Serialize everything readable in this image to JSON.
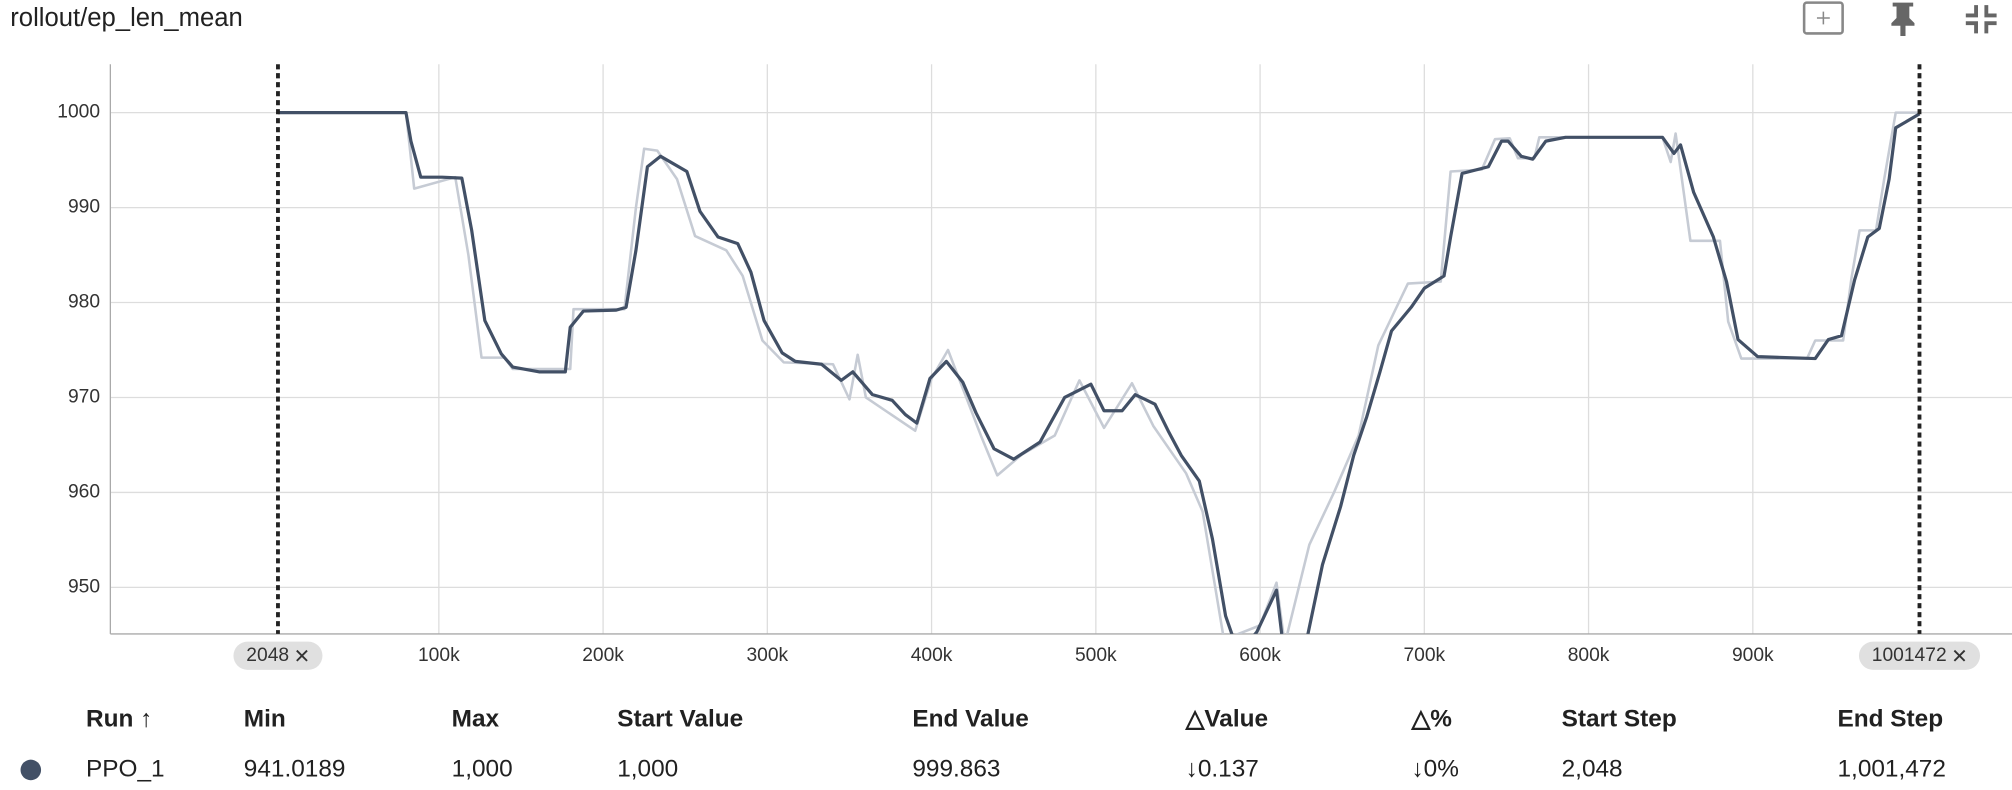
{
  "title": "rollout/ep_len_mean",
  "chart_data": {
    "type": "line",
    "xlim": [
      -100000,
      1057800
    ],
    "ylim": [
      945.1,
      1005.1
    ],
    "xticks": [
      {
        "value": 100000,
        "label": "100k"
      },
      {
        "value": 200000,
        "label": "200k"
      },
      {
        "value": 300000,
        "label": "300k"
      },
      {
        "value": 400000,
        "label": "400k"
      },
      {
        "value": 500000,
        "label": "500k"
      },
      {
        "value": 600000,
        "label": "600k"
      },
      {
        "value": 700000,
        "label": "700k"
      },
      {
        "value": 800000,
        "label": "800k"
      },
      {
        "value": 900000,
        "label": "900k"
      }
    ],
    "yticks": [
      950,
      960,
      970,
      980,
      990,
      1000
    ],
    "grid": true,
    "range_markers": [
      2048,
      1001472
    ],
    "series": [
      {
        "name": "PPO_1 raw",
        "color": "#c6cbd4",
        "x": [
          2048,
          80000,
          85000,
          110000,
          118000,
          126000,
          140000,
          145000,
          180000,
          182000,
          213000,
          220000,
          225000,
          233000,
          245000,
          256000,
          275000,
          285000,
          297000,
          310000,
          340000,
          350000,
          355000,
          360000,
          390000,
          400000,
          410000,
          430000,
          440000,
          455000,
          475000,
          490000,
          505000,
          522000,
          535000,
          555000,
          565000,
          578000,
          600000,
          610000,
          615000,
          630000,
          645000,
          660000,
          672000,
          690000,
          710000,
          716000,
          735000,
          743000,
          752000,
          757000,
          767000,
          770000,
          845000,
          850000,
          853000,
          862000,
          880000,
          885000,
          893000,
          933000,
          938000,
          955000,
          960000,
          965000,
          975000,
          980000,
          987000,
          1001472
        ],
        "values": [
          1000,
          1000,
          992,
          993.2,
          985,
          974.2,
          974.2,
          973,
          973,
          979.3,
          979.3,
          990,
          996.2,
          996,
          993,
          987,
          985.5,
          982.8,
          976,
          973.7,
          973.5,
          969.8,
          974.5,
          970,
          966.5,
          972,
          975,
          966,
          961.8,
          964,
          966,
          971.8,
          966.8,
          971.5,
          967,
          962,
          958,
          944.5,
          946,
          950.5,
          944,
          954.5,
          960,
          966,
          975.5,
          982,
          982.2,
          993.8,
          994,
          997.2,
          997.3,
          995.2,
          995.2,
          997.4,
          997.4,
          994.8,
          997.8,
          986.5,
          986.5,
          978,
          974.1,
          974.1,
          976,
          976,
          982.5,
          987.6,
          987.6,
          993,
          1000,
          1000
        ]
      },
      {
        "name": "PPO_1",
        "color": "#425066",
        "x": [
          2048,
          80000,
          83000,
          89000,
          102000,
          114000,
          120000,
          128000,
          138000,
          145000,
          161000,
          177000,
          180000,
          188000,
          208000,
          214000,
          220000,
          227000,
          235000,
          251000,
          259000,
          270000,
          282000,
          290000,
          298000,
          309000,
          317000,
          333000,
          345000,
          352000,
          364000,
          376000,
          384000,
          391000,
          399000,
          409000,
          419000,
          427000,
          438000,
          450000,
          466000,
          481000,
          497000,
          505000,
          516000,
          524000,
          536000,
          544000,
          552000,
          563000,
          571000,
          579000,
          587000,
          598000,
          610000,
          616000,
          626000,
          638000,
          649000,
          657000,
          665000,
          673000,
          680000,
          692000,
          700000,
          712000,
          716000,
          723000,
          739000,
          747000,
          751000,
          759000,
          766000,
          774000,
          786000,
          845000,
          852000,
          856000,
          864000,
          876000,
          884000,
          891000,
          903000,
          938000,
          946000,
          954000,
          962000,
          970000,
          977000,
          983000,
          987000,
          1001472
        ],
        "values": [
          1000,
          1000,
          997.0,
          993.2,
          993.2,
          993.1,
          987.6,
          978.1,
          974.6,
          973.2,
          972.7,
          972.7,
          977.4,
          979.1,
          979.2,
          979.5,
          985.5,
          994.3,
          995.4,
          993.8,
          989.6,
          986.9,
          986.2,
          983.2,
          978.1,
          974.7,
          973.8,
          973.5,
          971.8,
          972.7,
          970.3,
          969.7,
          968.2,
          967.3,
          972.0,
          973.8,
          971.6,
          968.4,
          964.6,
          963.5,
          965.3,
          970.0,
          971.4,
          968.6,
          968.6,
          970.3,
          969.3,
          966.5,
          963.9,
          961.2,
          955.1,
          947.0,
          943.0,
          945.3,
          949.7,
          941.0,
          942.5,
          952.4,
          958.5,
          963.9,
          968.0,
          972.7,
          977.0,
          979.5,
          981.5,
          982.8,
          986.9,
          993.6,
          994.3,
          997.0,
          997.0,
          995.4,
          995.1,
          997.0,
          997.4,
          997.4,
          995.7,
          996.6,
          991.6,
          986.9,
          982.2,
          976.1,
          974.3,
          974.1,
          976.1,
          976.5,
          982.4,
          986.9,
          987.8,
          993.0,
          998.4,
          999.863
        ]
      }
    ]
  },
  "table": {
    "columns": [
      "Run ↑",
      "Min",
      "Max",
      "Start Value",
      "End Value",
      "△Value",
      "△%",
      "Start Step",
      "End Step"
    ],
    "rows": [
      [
        "PPO_1",
        "941.0189",
        "1,000",
        "1,000",
        "999.863",
        "↓0.137",
        "↓0%",
        "2,048",
        "1,001,472"
      ]
    ]
  }
}
